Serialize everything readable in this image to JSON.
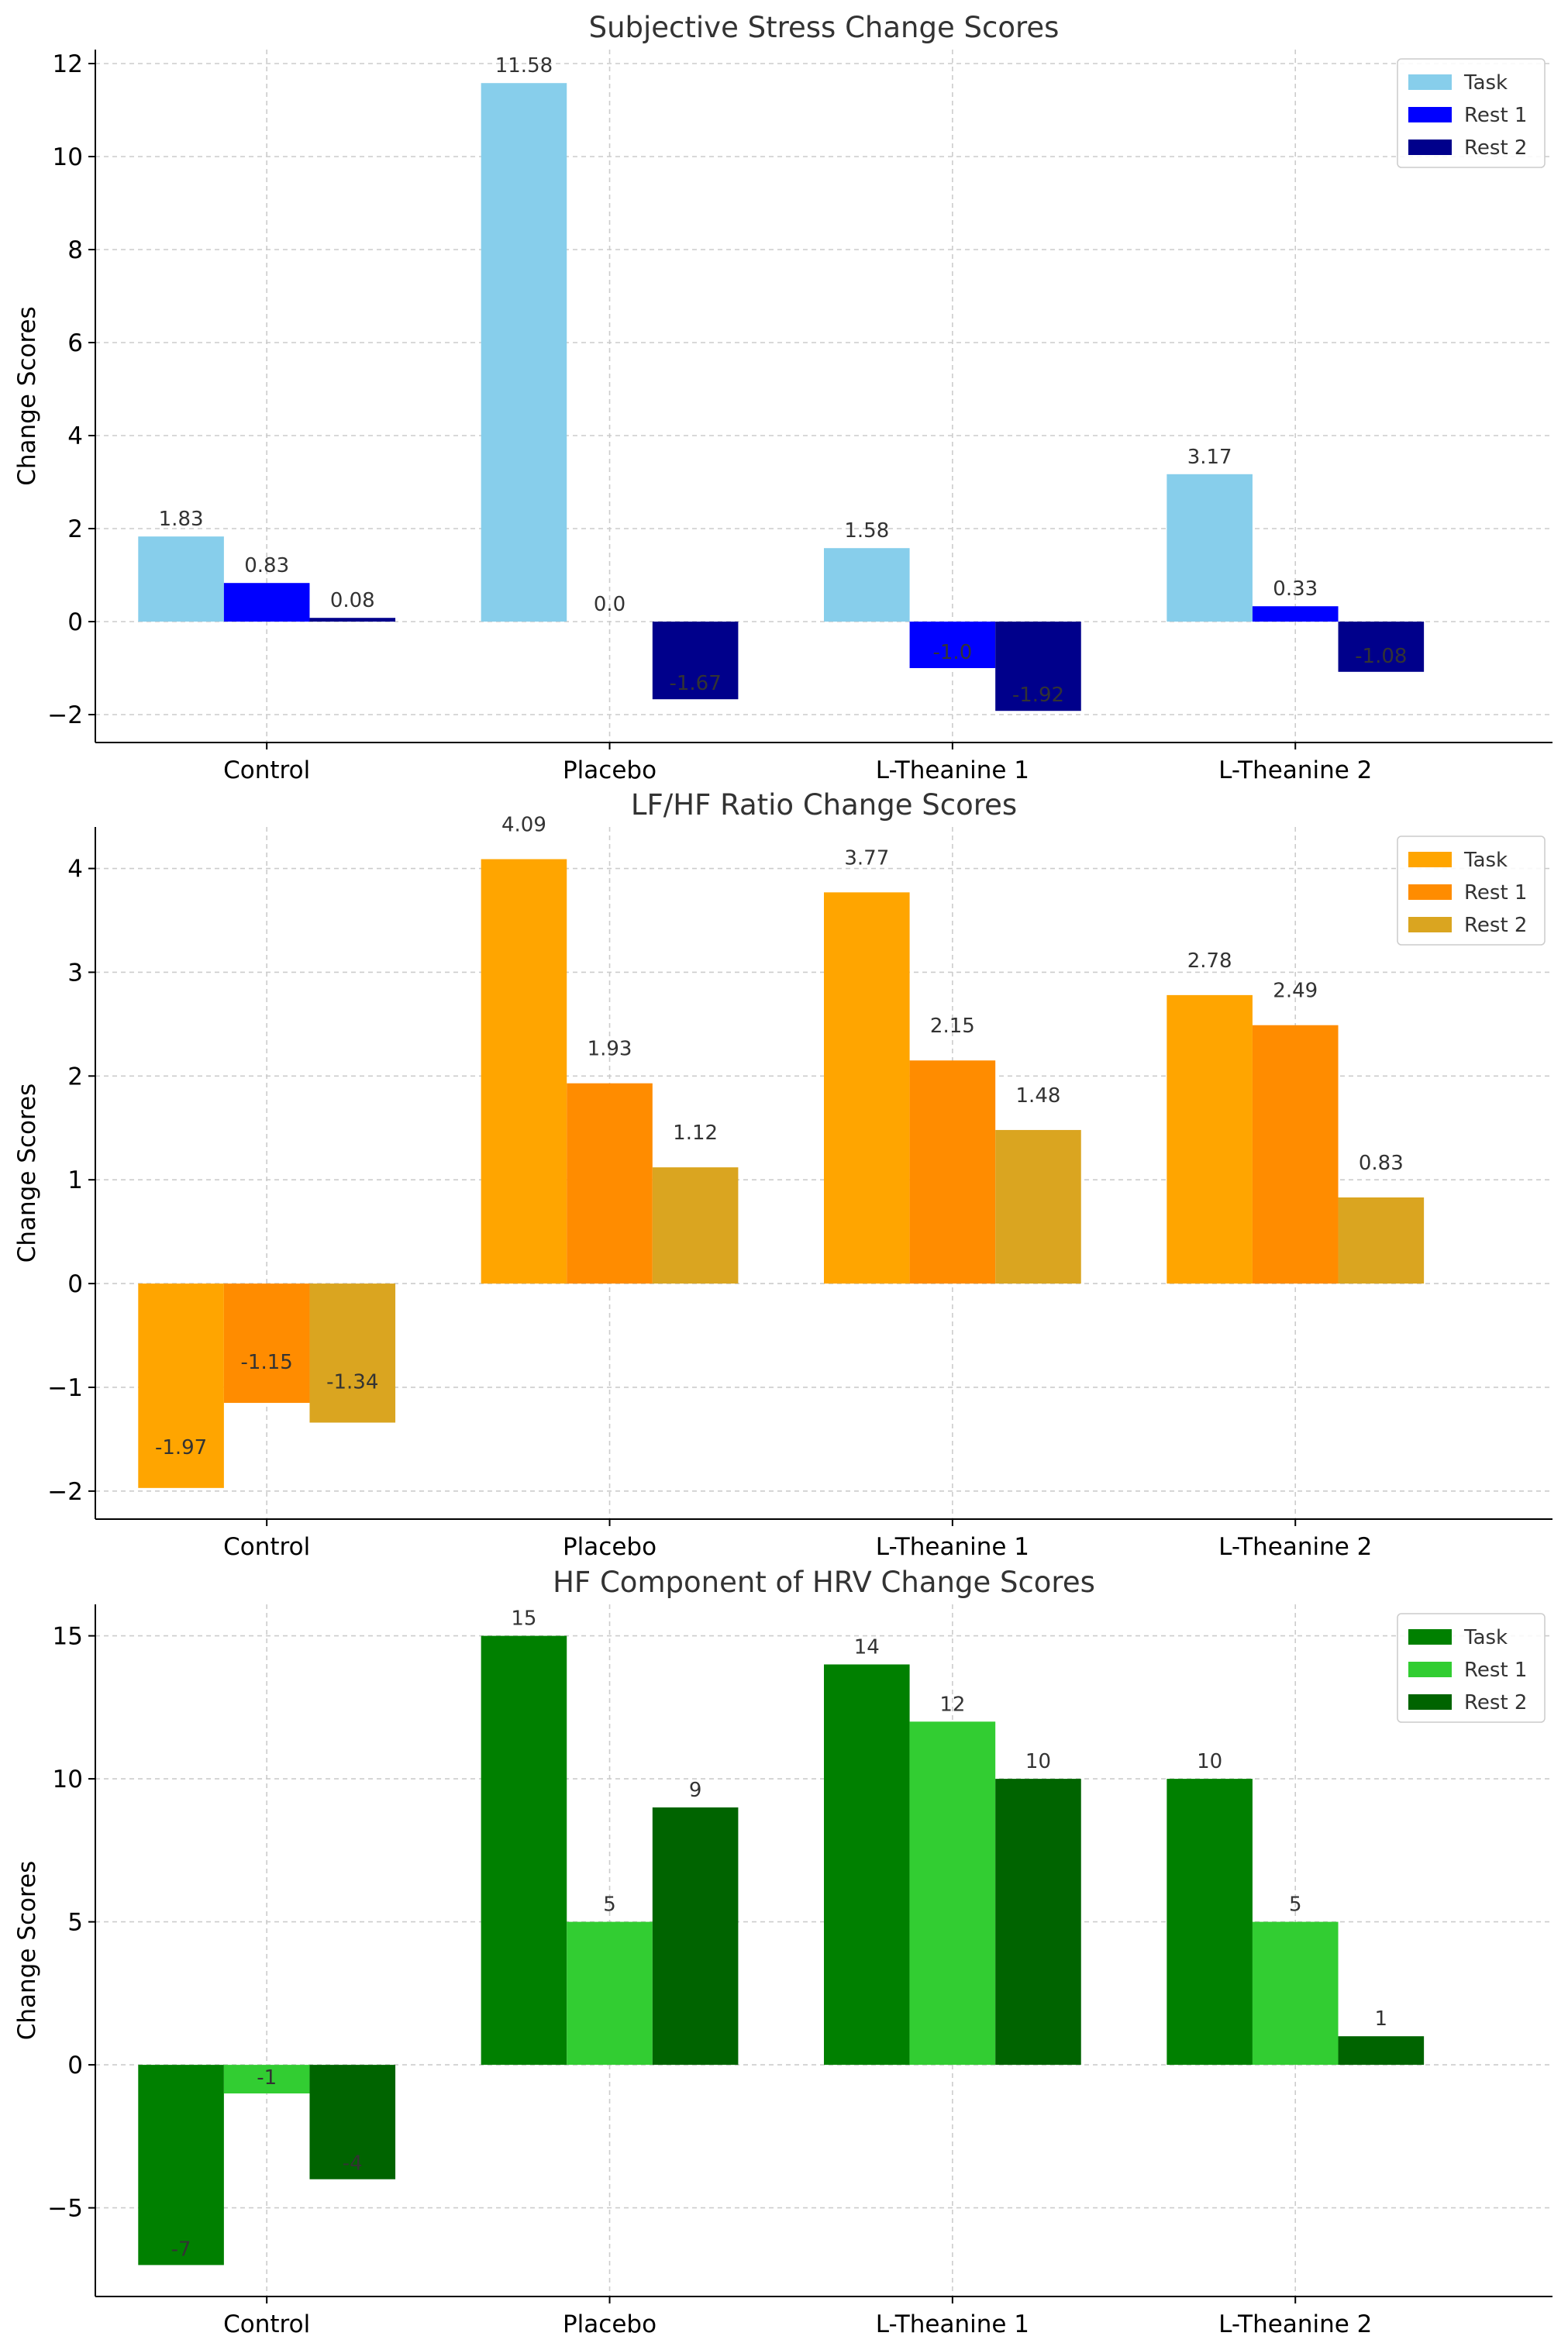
{
  "chart_data": [
    {
      "type": "bar",
      "title": "Subjective Stress Change Scores",
      "xlabel": "",
      "ylabel": "Change Scores",
      "categories": [
        "Control",
        "Placebo",
        "L-Theanine 1",
        "L-Theanine 2"
      ],
      "ylim": [
        -2.6,
        12.3
      ],
      "yticks": [
        -2,
        0,
        2,
        4,
        6,
        8,
        10,
        12
      ],
      "ytick_labels": [
        "−2",
        "0",
        "2",
        "4",
        "6",
        "8",
        "10",
        "12"
      ],
      "grid": true,
      "legend_position": "top-right",
      "series": [
        {
          "name": "Task",
          "color": "#87CEEB",
          "values": [
            1.83,
            11.58,
            1.58,
            3.17
          ],
          "labels": [
            "1.83",
            "11.58",
            "1.58",
            "3.17"
          ]
        },
        {
          "name": "Rest 1",
          "color": "#0000FF",
          "values": [
            0.83,
            0.0,
            -1.0,
            0.33
          ],
          "labels": [
            "0.83",
            "0.0",
            "-1.0",
            "0.33"
          ]
        },
        {
          "name": "Rest 2",
          "color": "#00008B",
          "values": [
            0.08,
            -1.67,
            -1.92,
            -1.08
          ],
          "labels": [
            "0.08",
            "-1.67",
            "-1.92",
            "-1.08"
          ]
        }
      ]
    },
    {
      "type": "bar",
      "title": "LF/HF Ratio Change Scores",
      "xlabel": "",
      "ylabel": "Change Scores",
      "categories": [
        "Control",
        "Placebo",
        "L-Theanine 1",
        "L-Theanine 2"
      ],
      "ylim": [
        -2.27,
        4.4
      ],
      "yticks": [
        -2,
        -1,
        0,
        1,
        2,
        3,
        4
      ],
      "ytick_labels": [
        "−2",
        "−1",
        "0",
        "1",
        "2",
        "3",
        "4"
      ],
      "grid": true,
      "legend_position": "top-right",
      "series": [
        {
          "name": "Task",
          "color": "#FFA500",
          "values": [
            -1.97,
            4.09,
            3.77,
            2.78
          ],
          "labels": [
            "-1.97",
            "4.09",
            "3.77",
            "2.78"
          ]
        },
        {
          "name": "Rest 1",
          "color": "#FF8C00",
          "values": [
            -1.15,
            1.93,
            2.15,
            2.49
          ],
          "labels": [
            "-1.15",
            "1.93",
            "2.15",
            "2.49"
          ]
        },
        {
          "name": "Rest 2",
          "color": "#DAA520",
          "values": [
            -1.34,
            1.12,
            1.48,
            0.83
          ],
          "labels": [
            "-1.34",
            "1.12",
            "1.48",
            "0.83"
          ]
        }
      ]
    },
    {
      "type": "bar",
      "title": "HF Component of HRV Change Scores",
      "xlabel": "",
      "ylabel": "Change Scores",
      "categories": [
        "Control",
        "Placebo",
        "L-Theanine 1",
        "L-Theanine 2"
      ],
      "ylim": [
        -8.1,
        16.1
      ],
      "yticks": [
        -5,
        0,
        5,
        10,
        15
      ],
      "ytick_labels": [
        "−5",
        "0",
        "5",
        "10",
        "15"
      ],
      "grid": true,
      "legend_position": "top-right",
      "series": [
        {
          "name": "Task",
          "color": "#008000",
          "values": [
            -7,
            15,
            14,
            10
          ],
          "labels": [
            "-7",
            "15",
            "14",
            "10"
          ]
        },
        {
          "name": "Rest 1",
          "color": "#32CD32",
          "values": [
            -1,
            5,
            12,
            5
          ],
          "labels": [
            "-1",
            "5",
            "12",
            "5"
          ]
        },
        {
          "name": "Rest 2",
          "color": "#006400",
          "values": [
            -4,
            9,
            10,
            1
          ],
          "labels": [
            "-4",
            "9",
            "10",
            "1"
          ]
        }
      ]
    }
  ]
}
